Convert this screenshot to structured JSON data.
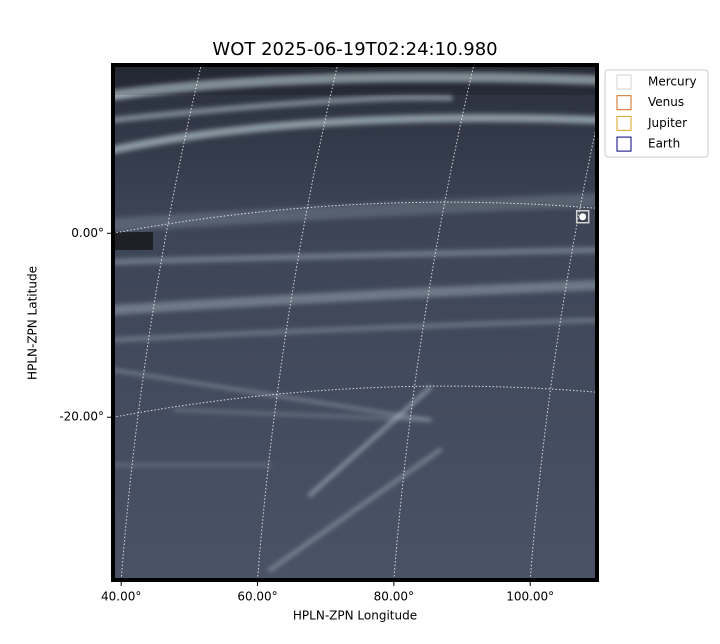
{
  "chart_data": {
    "type": "scatter",
    "title": "WOT 2025-06-19T02:24:10.980",
    "x_label": "HPLN-ZPN Longitude",
    "y_label": "HPLN-ZPN Latitude",
    "xlim": [
      38.8,
      109.8
    ],
    "ylim": [
      -37.7,
      18.3
    ],
    "xticks": [
      {
        "value": 40,
        "label": "40.00°"
      },
      {
        "value": 60,
        "label": "60.00°"
      },
      {
        "value": 80,
        "label": "80.00°"
      },
      {
        "value": 100,
        "label": "100.00°"
      }
    ],
    "yticks": [
      {
        "value": 0,
        "label": "0.00°"
      },
      {
        "value": -20,
        "label": "-20.00°"
      }
    ],
    "grid": true,
    "legend": "upper right outside",
    "series": [
      {
        "name": "Mercury",
        "color": "#d3d3d3",
        "x": [
          107.7
        ],
        "y": [
          1.8
        ]
      },
      {
        "name": "Venus",
        "color": "#d2691e",
        "x": [],
        "y": []
      },
      {
        "name": "Jupiter",
        "color": "#daa520",
        "x": [],
        "y": []
      },
      {
        "name": "Earth",
        "color": "#000080",
        "x": [],
        "y": []
      }
    ]
  }
}
